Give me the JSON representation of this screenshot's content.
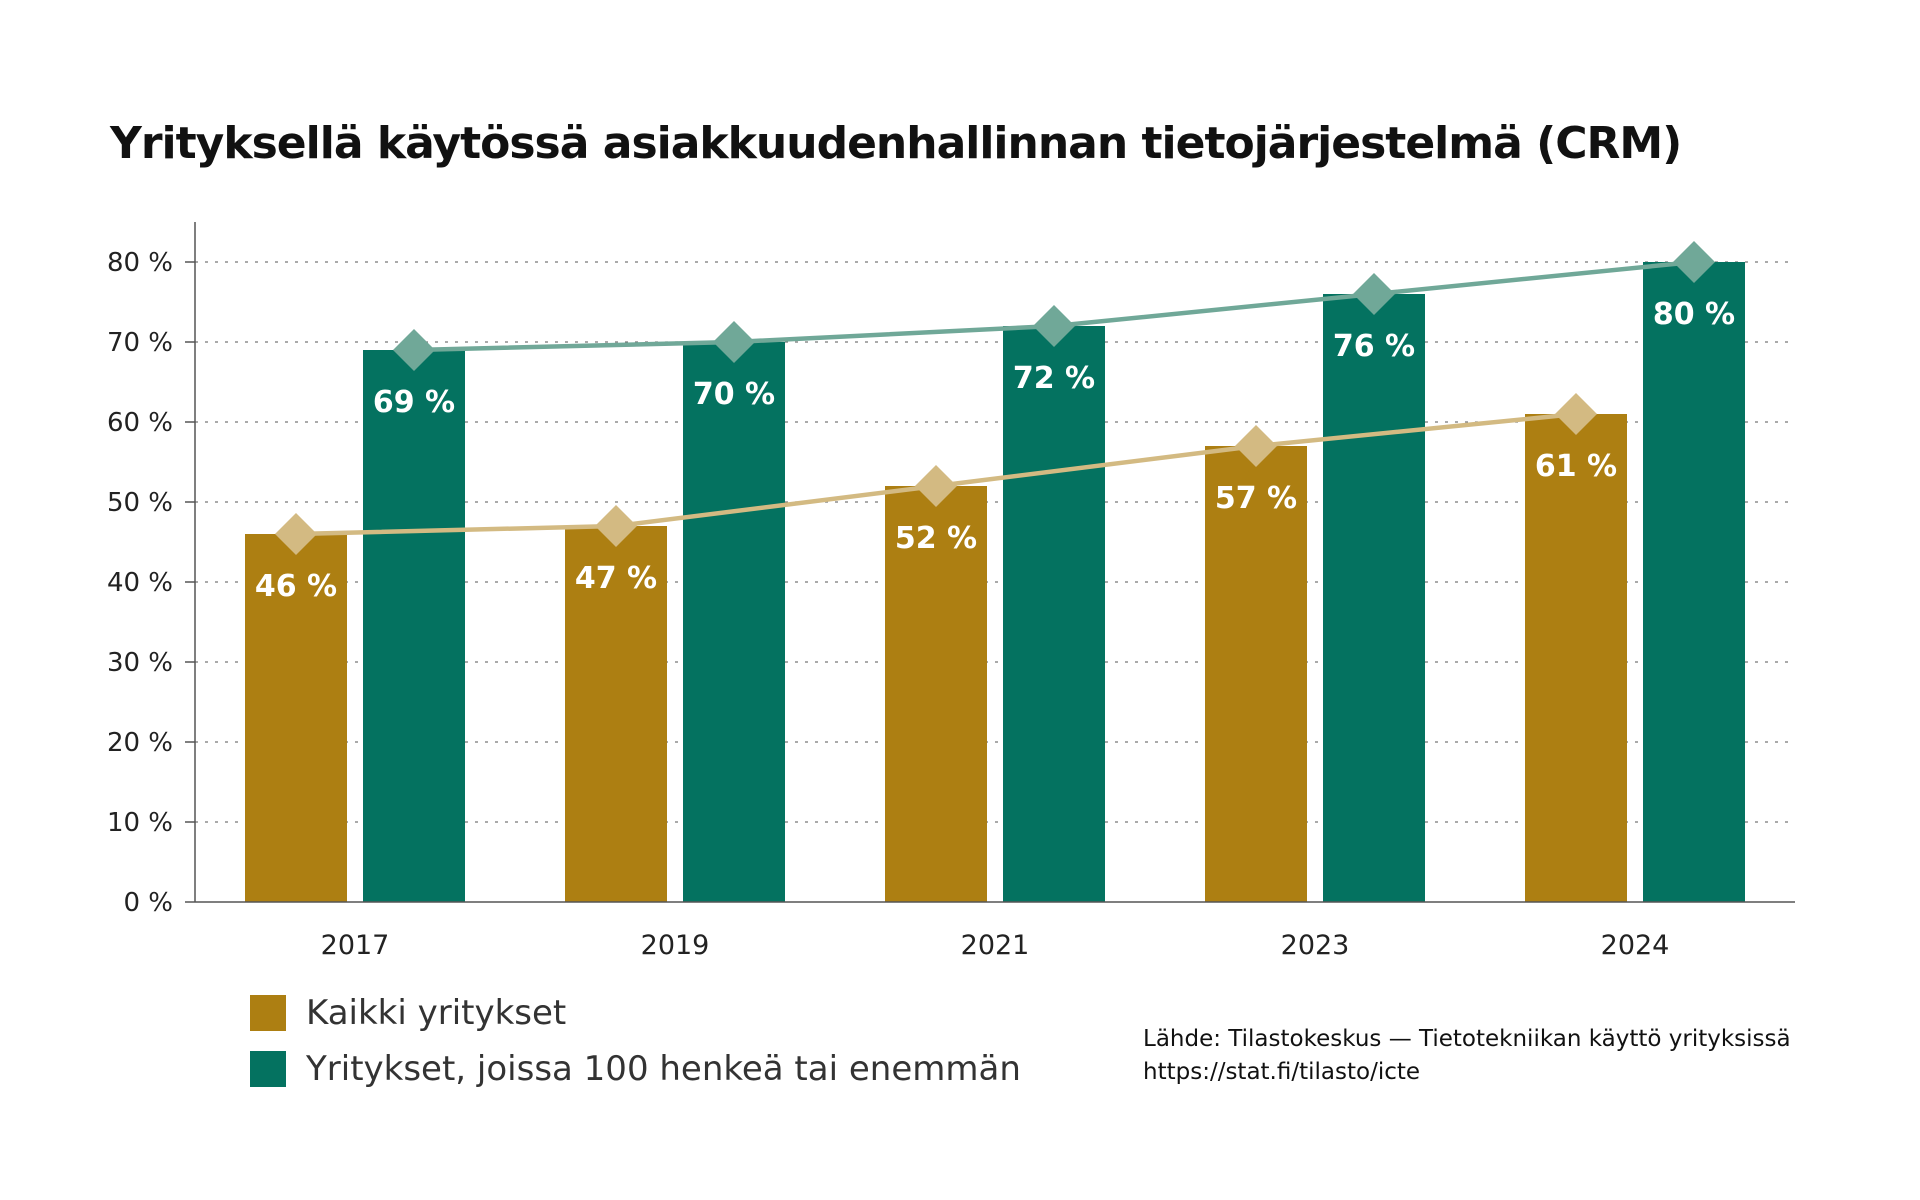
{
  "colors": {
    "all_bar": "#AD7F12",
    "large_bar": "#047260",
    "all_line": "#D3BA82",
    "large_line": "#70A898",
    "grid": "#777777",
    "axis": "#555555"
  },
  "legend": {
    "all_label": "Kaikki yritykset",
    "large_label": "Yritykset, joissa 100 henkeä tai enemmän"
  },
  "source": {
    "line1": "Lähde: Tilastokeskus — Tietotekniikan käyttö yrityksissä",
    "line2": "https://stat.fi/tilasto/icte"
  },
  "chart_data": {
    "type": "bar",
    "title": "Yrityksellä käytössä asiakkuudenhallinnan tietojärjestelmä (CRM)",
    "categories": [
      "2017",
      "2019",
      "2021",
      "2023",
      "2024"
    ],
    "series": [
      {
        "name": "Kaikki yritykset",
        "values": [
          46,
          47,
          52,
          57,
          61
        ],
        "labels": [
          "46 %",
          "47 %",
          "52 %",
          "57 %",
          "61 %"
        ]
      },
      {
        "name": "Yritykset, joissa 100 henkeä tai enemmän",
        "values": [
          69,
          70,
          72,
          76,
          80
        ],
        "labels": [
          "69 %",
          "70 %",
          "72 %",
          "76 %",
          "80 %"
        ]
      }
    ],
    "overlay": "line with diamond markers per series",
    "ylim": [
      0,
      85
    ],
    "yticks": [
      0,
      10,
      20,
      30,
      40,
      50,
      60,
      70,
      80
    ],
    "ytick_labels": [
      "0 %",
      "10 %",
      "20 %",
      "30 %",
      "40 %",
      "50 %",
      "60 %",
      "70 %",
      "80 %"
    ],
    "grid": "horizontal dotted",
    "legend_position": "bottom-left"
  }
}
